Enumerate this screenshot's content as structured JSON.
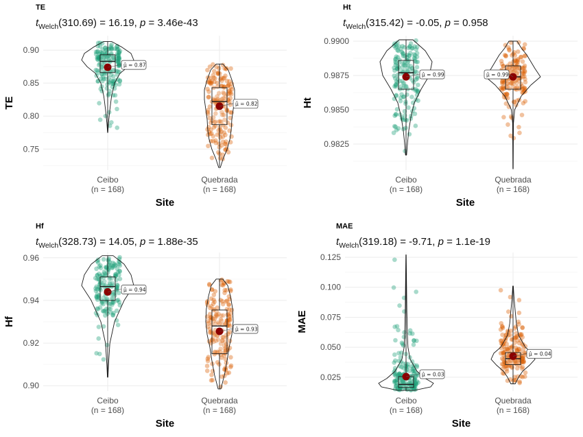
{
  "colors": {
    "ceibo": "#1b9e77",
    "quebrada": "#d95f02",
    "mean": "#8b0000",
    "grid": "#ebebeb",
    "outline": "#1a1a1a"
  },
  "chart_data": [
    {
      "type": "violin-box",
      "tag": "TE",
      "stat": {
        "prefix": "t",
        "sub": "Welch",
        "df": "310.69",
        "t": "16.19",
        "p": "3.46e-43"
      },
      "xlabel": "Site",
      "ylabel": "TE",
      "ylim": [
        0.718,
        0.922
      ],
      "yticks": [
        "0.75",
        "0.80",
        "0.85",
        "0.90"
      ],
      "groups": [
        {
          "name": "Ceibo",
          "n": "(n = 168)",
          "min": 0.775,
          "q1": 0.866,
          "median": 0.883,
          "q3": 0.893,
          "max": 0.913,
          "mean": 0.874,
          "mean_label": "= 0.87",
          "violin": [
            [
              0.775,
              0.005
            ],
            [
              0.79,
              0.03
            ],
            [
              0.81,
              0.08
            ],
            [
              0.83,
              0.14
            ],
            [
              0.85,
              0.25
            ],
            [
              0.865,
              0.45
            ],
            [
              0.875,
              0.75
            ],
            [
              0.885,
              0.95
            ],
            [
              0.895,
              0.85
            ],
            [
              0.905,
              0.5
            ],
            [
              0.913,
              0.15
            ]
          ]
        },
        {
          "name": "Quebrada",
          "n": "(n = 168)",
          "min": 0.723,
          "q1": 0.787,
          "median": 0.822,
          "q3": 0.843,
          "max": 0.879,
          "mean": 0.815,
          "mean_label": "= 0.82",
          "violin": [
            [
              0.722,
              0.03
            ],
            [
              0.735,
              0.13
            ],
            [
              0.75,
              0.28
            ],
            [
              0.765,
              0.38
            ],
            [
              0.78,
              0.43
            ],
            [
              0.795,
              0.45
            ],
            [
              0.81,
              0.5
            ],
            [
              0.825,
              0.55
            ],
            [
              0.84,
              0.55
            ],
            [
              0.855,
              0.45
            ],
            [
              0.87,
              0.32
            ],
            [
              0.879,
              0.12
            ]
          ]
        }
      ]
    },
    {
      "type": "violin-box",
      "tag": "Ht",
      "stat": {
        "prefix": "t",
        "sub": "Welch",
        "df": "315.42",
        "t": "-0.05",
        "p": "0.958"
      },
      "xlabel": "Site",
      "ylabel": "Ht",
      "ylim": [
        0.9806,
        0.9904
      ],
      "yticks": [
        "0.9825",
        "0.9850",
        "0.9875",
        "0.9900"
      ],
      "groups": [
        {
          "name": "Ceibo",
          "n": "(n = 168)",
          "min": 0.9817,
          "q1": 0.9865,
          "median": 0.9877,
          "q3": 0.9886,
          "max": 0.9901,
          "mean": 0.9874,
          "mean_label": "= 0.99",
          "violin": [
            [
              0.9817,
              0.02
            ],
            [
              0.9825,
              0.05
            ],
            [
              0.9835,
              0.1
            ],
            [
              0.9845,
              0.18
            ],
            [
              0.9855,
              0.3
            ],
            [
              0.9865,
              0.55
            ],
            [
              0.9875,
              0.85
            ],
            [
              0.9885,
              0.95
            ],
            [
              0.9893,
              0.7
            ],
            [
              0.9901,
              0.25
            ]
          ]
        },
        {
          "name": "Quebrada",
          "n": "(n = 168)",
          "min": 0.9807,
          "q1": 0.9865,
          "median": 0.9874,
          "q3": 0.9882,
          "max": 0.99,
          "mean": 0.9874,
          "mean_label": "= 0.99",
          "violin": [
            [
              0.9807,
              0.005
            ],
            [
              0.9825,
              0.01
            ],
            [
              0.984,
              0.015
            ],
            [
              0.985,
              0.06
            ],
            [
              0.986,
              0.3
            ],
            [
              0.9868,
              0.65
            ],
            [
              0.9874,
              1.0
            ],
            [
              0.988,
              0.8
            ],
            [
              0.989,
              0.5
            ],
            [
              0.9895,
              0.3
            ],
            [
              0.99,
              0.15
            ]
          ]
        }
      ]
    },
    {
      "type": "violin-box",
      "tag": "Hf",
      "stat": {
        "prefix": "t",
        "sub": "Welch",
        "df": "328.73",
        "t": "14.05",
        "p": "1.88e-35"
      },
      "xlabel": "Site",
      "ylabel": "Hf",
      "ylim": [
        0.8975,
        0.9625
      ],
      "yticks": [
        "0.90",
        "0.92",
        "0.94",
        "0.96"
      ],
      "groups": [
        {
          "name": "Ceibo",
          "n": "(n = 168)",
          "min": 0.904,
          "q1": 0.94,
          "median": 0.9465,
          "q3": 0.951,
          "max": 0.961,
          "mean": 0.944,
          "mean_label": "= 0.94",
          "violin": [
            [
              0.904,
              0.01
            ],
            [
              0.91,
              0.03
            ],
            [
              0.92,
              0.08
            ],
            [
              0.93,
              0.25
            ],
            [
              0.94,
              0.6
            ],
            [
              0.947,
              0.95
            ],
            [
              0.952,
              0.85
            ],
            [
              0.957,
              0.6
            ],
            [
              0.961,
              0.2
            ]
          ]
        },
        {
          "name": "Quebrada",
          "n": "(n = 168)",
          "min": 0.8985,
          "q1": 0.915,
          "median": 0.928,
          "q3": 0.9355,
          "max": 0.95,
          "mean": 0.9255,
          "mean_label": "= 0.93",
          "violin": [
            [
              0.8985,
              0.05
            ],
            [
              0.905,
              0.18
            ],
            [
              0.912,
              0.28
            ],
            [
              0.918,
              0.35
            ],
            [
              0.924,
              0.45
            ],
            [
              0.93,
              0.5
            ],
            [
              0.936,
              0.48
            ],
            [
              0.942,
              0.4
            ],
            [
              0.947,
              0.3
            ],
            [
              0.95,
              0.12
            ]
          ]
        }
      ]
    },
    {
      "type": "violin-box",
      "tag": "MAE",
      "stat": {
        "prefix": "t",
        "sub": "Welch",
        "df": "319.18",
        "t": "-9.71",
        "p": "1.1e-19"
      },
      "xlabel": "Site",
      "ylabel": "MAE",
      "ylim": [
        0.0135,
        0.129
      ],
      "yticks": [
        "0.025",
        "0.050",
        "0.075",
        "0.100",
        "0.125"
      ],
      "groups": [
        {
          "name": "Ceibo",
          "n": "(n = 168)",
          "min": 0.014,
          "q1": 0.0165,
          "median": 0.019,
          "q3": 0.0255,
          "max": 0.127,
          "mean": 0.0255,
          "mean_label": "= 0.03",
          "violin": [
            [
              0.014,
              0.3
            ],
            [
              0.017,
              0.9
            ],
            [
              0.02,
              1.0
            ],
            [
              0.024,
              0.7
            ],
            [
              0.03,
              0.4
            ],
            [
              0.04,
              0.15
            ],
            [
              0.05,
              0.07
            ],
            [
              0.06,
              0.05
            ],
            [
              0.08,
              0.03
            ],
            [
              0.1,
              0.02
            ],
            [
              0.127,
              0.005
            ]
          ]
        },
        {
          "name": "Quebrada",
          "n": "(n = 168)",
          "min": 0.0195,
          "q1": 0.0355,
          "median": 0.0405,
          "q3": 0.0455,
          "max": 0.101,
          "mean": 0.0425,
          "mean_label": "= 0.04",
          "violin": [
            [
              0.0195,
              0.08
            ],
            [
              0.025,
              0.2
            ],
            [
              0.03,
              0.35
            ],
            [
              0.035,
              0.6
            ],
            [
              0.04,
              0.8
            ],
            [
              0.045,
              0.7
            ],
            [
              0.05,
              0.45
            ],
            [
              0.06,
              0.2
            ],
            [
              0.07,
              0.12
            ],
            [
              0.08,
              0.08
            ],
            [
              0.09,
              0.04
            ],
            [
              0.101,
              0.01
            ]
          ]
        }
      ]
    }
  ]
}
